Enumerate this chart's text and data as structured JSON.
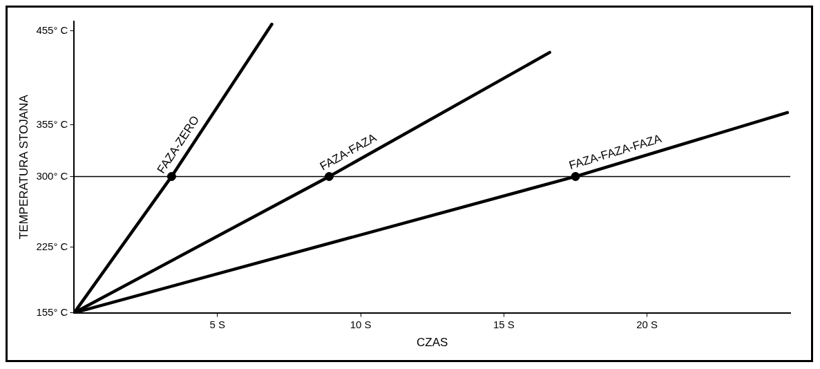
{
  "chart_data": {
    "type": "line",
    "xlabel": "CZAS",
    "ylabel": "TEMPERATURA STOJANA",
    "xlim": [
      0,
      25
    ],
    "ylim": [
      155,
      465
    ],
    "xticks": [
      {
        "value": 5,
        "label": "5 S"
      },
      {
        "value": 10,
        "label": "10 S"
      },
      {
        "value": 15,
        "label": "15 S"
      },
      {
        "value": 20,
        "label": "20 S"
      }
    ],
    "yticks": [
      {
        "value": 155,
        "label": "155° C"
      },
      {
        "value": 225,
        "label": "225° C"
      },
      {
        "value": 300,
        "label": "300° C"
      },
      {
        "value": 355,
        "label": "355° C"
      },
      {
        "value": 455,
        "label": "455° C"
      }
    ],
    "grid": false,
    "legend": false,
    "marker": "none",
    "line_style": "solid",
    "ref_lines": [
      {
        "axis": "y",
        "value": 300,
        "color": "#000000"
      }
    ],
    "series": [
      {
        "name": "FAZA-ZERO",
        "color": "#000000",
        "x": [
          0,
          3.4,
          6.9
        ],
        "values": [
          155,
          300,
          462
        ]
      },
      {
        "name": "FAZA-FAZA",
        "color": "#000000",
        "x": [
          0,
          8.9,
          16.6
        ],
        "values": [
          155,
          300,
          432
        ]
      },
      {
        "name": "FAZA-FAZA-FAZA",
        "color": "#000000",
        "x": [
          0,
          17.5,
          24.9
        ],
        "values": [
          155,
          300,
          368
        ]
      },
      {
        "type": "scatter",
        "color": "#000000",
        "marker": "circle",
        "x": [
          3.4,
          8.9,
          17.5
        ],
        "values": [
          300,
          300,
          300
        ]
      }
    ]
  }
}
